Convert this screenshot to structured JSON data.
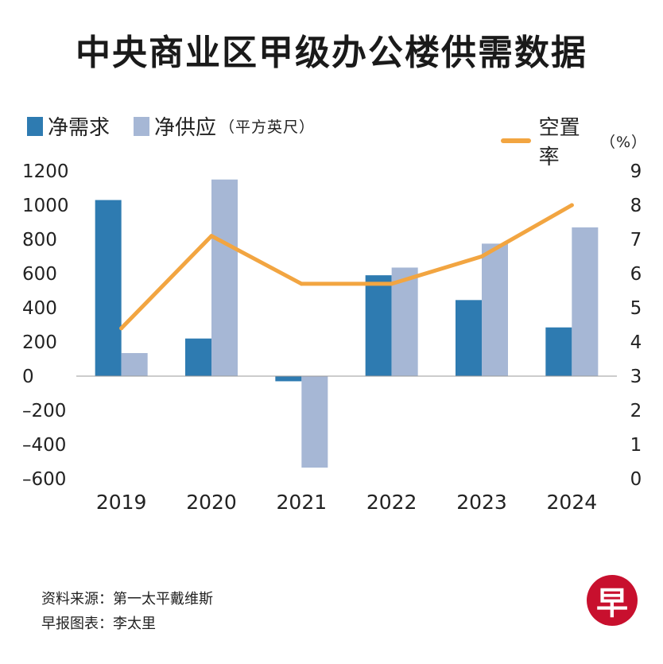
{
  "title": "中央商业区甲级办公楼供需数据",
  "legend": {
    "net_demand": "净需求",
    "net_supply": "净供应",
    "area_unit": "（平方英尺）",
    "vacancy": "空置率",
    "vacancy_unit": "（%）"
  },
  "colors": {
    "net_demand": "#2e7bb1",
    "net_supply": "#a6b7d5",
    "vacancy": "#f2a541"
  },
  "chart_data": {
    "type": "bar",
    "title": "中央商业区甲级办公楼供需数据",
    "categories": [
      "2019",
      "2020",
      "2021",
      "2022",
      "2023",
      "2024"
    ],
    "series": [
      {
        "name": "净需求",
        "type": "bar",
        "axis": "left",
        "values": [
          1030,
          220,
          -30,
          590,
          445,
          285
        ]
      },
      {
        "name": "净供应",
        "type": "bar",
        "axis": "left",
        "values": [
          135,
          1150,
          -535,
          635,
          775,
          870
        ]
      },
      {
        "name": "空置率",
        "type": "line",
        "axis": "right",
        "values": [
          4.4,
          7.1,
          5.7,
          5.7,
          6.5,
          8.0
        ]
      }
    ],
    "y_left": {
      "label": "平方英尺",
      "lim": [
        -600,
        1200
      ],
      "ticks": [
        1200,
        1000,
        800,
        600,
        400,
        200,
        0,
        -200,
        -400,
        -600
      ]
    },
    "y_right": {
      "label": "%",
      "lim": [
        0,
        9
      ],
      "ticks": [
        9,
        8,
        7,
        6,
        5,
        4,
        3,
        2,
        1,
        0
      ]
    },
    "legend_position": "top",
    "grid": false
  },
  "footer": {
    "source": "资料来源：第一太平戴维斯",
    "credit": "早报图表：李太里"
  },
  "logo": {
    "glyph": "早"
  }
}
